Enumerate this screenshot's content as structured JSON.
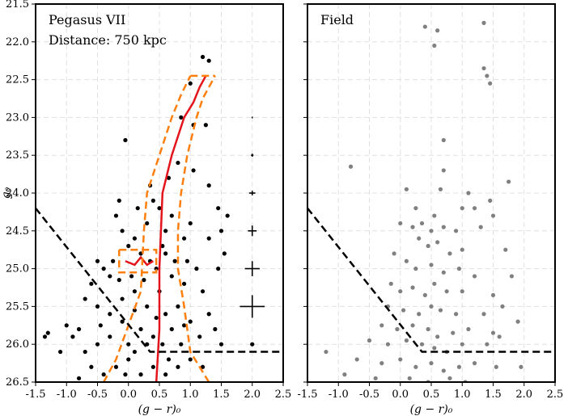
{
  "chart_data": [
    {
      "type": "scatter",
      "y_label": "g₀",
      "x_label": "(g − r)₀",
      "annotations": [
        "Pegasus VII",
        "Distance: 750 kpc"
      ],
      "grid": true,
      "xlim": [
        -1.5,
        2.5
      ],
      "ylim": [
        26.5,
        21.5
      ],
      "xticks": [
        -1.5,
        {
          "value": -1,
          "label": "-1.0"
        },
        -0.5,
        {
          "value": 0,
          "label": "0.0"
        },
        0.5,
        {
          "value": 1,
          "label": "1.0"
        },
        1.5,
        {
          "value": 2,
          "label": "2.0"
        },
        2.5
      ],
      "yticks": [
        21.5,
        {
          "value": 22,
          "label": "22.0"
        },
        22.5,
        {
          "value": 23,
          "label": "23.0"
        },
        23.5,
        {
          "value": 24,
          "label": "24.0"
        },
        24.5,
        {
          "value": 25,
          "label": "25.0"
        },
        25.5,
        {
          "value": 26,
          "label": "26.0"
        },
        26.5
      ],
      "series": [
        {
          "type": "scatter",
          "color": "#000000",
          "x": [
            -0.05,
            0.85,
            1.25,
            0.8,
            1.05,
            1.3,
            1.45,
            1.6,
            0.5,
            0.4,
            0.7,
            1.0,
            1.5,
            1.55,
            1.45,
            1.3,
            0.9,
            0.6,
            0.3,
            0.1,
            -0.2,
            -0.1,
            0.0,
            0.2,
            -0.4,
            -0.5,
            -0.3,
            0.35,
            0.45,
            0.6,
            0.7,
            0.9,
            1.1,
            1.2,
            1.3,
            1.4,
            1.5,
            -0.6,
            -0.7,
            -0.5,
            -0.3,
            -0.1,
            0.1,
            0.3,
            0.5,
            0.6,
            0.8,
            1.0,
            1.15,
            -0.8,
            -1.0,
            -0.9,
            -0.7,
            -0.5,
            -0.3,
            -0.1,
            0.0,
            0.2,
            0.4,
            0.55,
            0.7,
            0.85,
            1.0,
            1.2,
            -1.35,
            -1.3,
            -1.1,
            -0.6,
            -0.4,
            -0.2,
            0.0,
            0.2,
            0.4,
            0.6,
            0.8,
            -0.8,
            0.1,
            -0.25,
            0.05,
            0.25,
            0.75,
            0.95,
            0.55,
            0.15,
            -0.15,
            0.35,
            0.65,
            2.0,
            1.05,
            0.3,
            -0.05,
            0.65,
            -0.45,
            0.45,
            0.9,
            -0.15,
            0.1,
            1.2,
            1.3,
            1.0
          ],
          "values": [
            23.3,
            23.0,
            23.1,
            23.6,
            23.7,
            23.9,
            24.2,
            24.3,
            24.2,
            24.1,
            24.3,
            24.4,
            24.5,
            24.8,
            25.0,
            24.6,
            24.6,
            24.5,
            24.4,
            24.6,
            24.3,
            24.5,
            24.7,
            24.8,
            25.0,
            24.9,
            25.1,
            24.9,
            25.0,
            24.8,
            25.1,
            25.2,
            25.0,
            25.3,
            25.6,
            25.8,
            26.0,
            25.2,
            25.4,
            25.5,
            25.6,
            25.4,
            25.3,
            25.5,
            25.3,
            25.6,
            25.5,
            25.7,
            25.9,
            25.8,
            25.75,
            25.9,
            26.1,
            26.0,
            25.9,
            25.7,
            26.0,
            25.8,
            25.9,
            26.0,
            25.8,
            26.0,
            26.2,
            26.3,
            25.9,
            25.85,
            26.1,
            26.3,
            26.4,
            26.3,
            26.2,
            26.4,
            26.3,
            26.4,
            26.3,
            26.45,
            26.1,
            24.9,
            25.1,
            25.15,
            24.9,
            24.9,
            24.7,
            24.2,
            24.1,
            23.9,
            23.8,
            26.0,
            23.1,
            26.0,
            26.4,
            26.2,
            25.75,
            25.65,
            25.75,
            25.15,
            25.55,
            22.2,
            22.25,
            22.55
          ]
        },
        {
          "type": "line",
          "color": "#e3141c",
          "x": [
            0.45,
            0.5,
            0.5,
            0.55,
            0.7,
            0.9,
            1.05,
            1.15,
            1.25
          ],
          "values": [
            26.5,
            25.8,
            25.0,
            24.0,
            23.5,
            23.0,
            22.8,
            22.6,
            22.45
          ]
        },
        {
          "type": "line",
          "color": "#e3141c",
          "x": [
            -0.05,
            0.1,
            0.2,
            0.3,
            0.4
          ],
          "values": [
            24.9,
            24.95,
            24.85,
            24.95,
            24.9
          ]
        },
        {
          "type": "line",
          "color": "#ff7f0e",
          "dashed": true,
          "x": [
            -0.4,
            -0.2,
            0.2,
            0.25,
            0.3,
            0.5,
            0.7,
            0.85,
            1.0
          ],
          "values": [
            26.5,
            26.2,
            25.3,
            24.5,
            24.0,
            23.5,
            23.0,
            22.7,
            22.45
          ]
        },
        {
          "type": "line",
          "color": "#ff7f0e",
          "dashed": true,
          "x": [
            1.3,
            1.0,
            0.9,
            0.8,
            0.8,
            0.85,
            0.95,
            1.1,
            1.2,
            1.4
          ],
          "values": [
            26.5,
            26.1,
            25.5,
            25.0,
            24.5,
            24.0,
            23.5,
            23.0,
            22.75,
            22.45
          ]
        },
        {
          "type": "line",
          "color": "#ff7f0e",
          "dashed": true,
          "x": [
            1.0,
            1.4
          ],
          "values": [
            22.45,
            22.45
          ]
        },
        {
          "type": "line",
          "color": "#ff7f0e",
          "dashed": true,
          "x": [
            -0.15,
            0.45,
            0.45,
            -0.15,
            -0.15
          ],
          "values": [
            24.75,
            24.75,
            25.05,
            25.05,
            24.75
          ]
        },
        {
          "type": "line",
          "color": "#000000",
          "dashed": true,
          "x": [
            -1.5,
            0.35,
            2.5
          ],
          "values": [
            24.2,
            26.1,
            26.1
          ]
        },
        {
          "type": "errorbar",
          "color": "#000000",
          "x": [
            2,
            2,
            2,
            2,
            2,
            2
          ],
          "values": [
            23,
            23.5,
            24,
            24.5,
            25,
            25.5
          ],
          "xerr": [
            0.01,
            0.02,
            0.05,
            0.07,
            0.12,
            0.2
          ],
          "yerr": [
            0.01,
            0.02,
            0.03,
            0.07,
            0.1,
            0.15
          ]
        }
      ]
    },
    {
      "type": "scatter",
      "x_label": "(g − r)₀",
      "annotations": [
        "Field"
      ],
      "grid": true,
      "xlim": [
        -1.5,
        2.5
      ],
      "ylim": [
        26.5,
        21.5
      ],
      "xticks": [
        -1.5,
        {
          "value": -1,
          "label": "-1.0"
        },
        -0.5,
        {
          "value": 0,
          "label": "0.0"
        },
        0.5,
        {
          "value": 1,
          "label": "1.0"
        },
        1.5,
        {
          "value": 2,
          "label": "2.0"
        },
        2.5
      ],
      "yticks": [
        21.5,
        22,
        22.5,
        23,
        23.5,
        24,
        24.5,
        25,
        25.5,
        26,
        26.5
      ],
      "series": [
        {
          "type": "scatter",
          "color": "#808080",
          "x": [
            0.4,
            0.6,
            0.55,
            1.35,
            1.35,
            1.4,
            1.45,
            0.7,
            0.7,
            -0.8,
            0.65,
            1.75,
            0.1,
            1.1,
            1.0,
            1.2,
            1.45,
            1.5,
            0.0,
            0.2,
            0.35,
            0.5,
            0.7,
            1.3,
            -0.1,
            0.3,
            0.45,
            0.6,
            0.8,
            1.0,
            1.7,
            0.1,
            0.25,
            0.5,
            0.7,
            0.95,
            1.2,
            1.8,
            0.0,
            0.2,
            0.4,
            0.55,
            0.75,
            1.0,
            1.5,
            -0.2,
            0.05,
            0.3,
            0.5,
            0.65,
            0.9,
            1.35,
            1.65,
            -0.3,
            -0.05,
            0.2,
            0.45,
            0.6,
            0.85,
            1.1,
            1.5,
            1.9,
            -0.5,
            -0.2,
            0.1,
            0.35,
            0.55,
            0.75,
            1.0,
            1.4,
            1.6,
            -1.2,
            -0.7,
            -0.3,
            0.0,
            0.25,
            0.5,
            0.7,
            0.95,
            1.2,
            1.55,
            1.95,
            -0.9,
            -0.4,
            0.15,
            0.45,
            0.8,
            1.05,
            -0.15,
            0.55,
            0.9,
            0.25
          ],
          "values": [
            21.8,
            21.85,
            22.05,
            21.75,
            22.35,
            22.45,
            22.55,
            23.3,
            23.7,
            23.65,
            23.95,
            23.85,
            23.95,
            24.0,
            24.2,
            24.2,
            24.1,
            24.3,
            24.4,
            24.45,
            24.4,
            24.5,
            24.45,
            24.45,
            24.8,
            24.6,
            24.7,
            24.65,
            24.8,
            24.75,
            24.75,
            24.9,
            25.0,
            24.95,
            25.05,
            25.0,
            25.1,
            25.1,
            25.3,
            25.25,
            25.35,
            25.2,
            25.3,
            25.3,
            25.35,
            25.5,
            25.55,
            25.6,
            25.5,
            25.55,
            25.6,
            25.6,
            25.5,
            25.75,
            25.8,
            25.75,
            25.8,
            25.9,
            25.85,
            25.8,
            25.85,
            25.7,
            25.95,
            26.0,
            25.95,
            26.0,
            26.05,
            26.1,
            26.0,
            26.0,
            25.9,
            26.1,
            26.2,
            26.25,
            26.2,
            26.3,
            26.25,
            26.35,
            26.3,
            26.25,
            26.3,
            26.3,
            26.4,
            26.45,
            26.45,
            26.5,
            26.45,
            26.5,
            25.2,
            24.3,
            24.5,
            24.2
          ]
        },
        {
          "type": "line",
          "color": "#000000",
          "dashed": true,
          "x": [
            -1.5,
            0.35,
            2.5
          ],
          "values": [
            24.2,
            26.1,
            26.1
          ]
        }
      ]
    }
  ]
}
